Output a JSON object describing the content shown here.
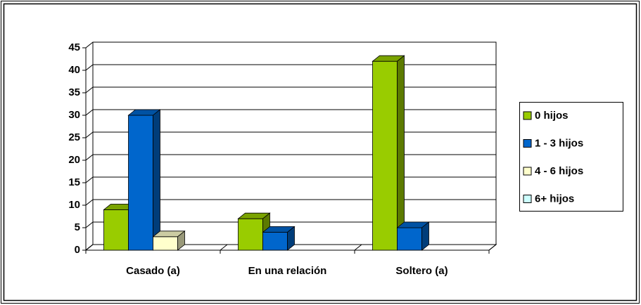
{
  "chart_data": {
    "type": "bar3d",
    "categories": [
      "Casado (a)",
      "En una relación",
      "Soltero (a)"
    ],
    "series": [
      {
        "name": "0 hijos",
        "color": "#99cc00",
        "values": [
          9,
          7,
          42
        ]
      },
      {
        "name": "1 - 3 hijos",
        "color": "#0066cc",
        "values": [
          30,
          4,
          5
        ]
      },
      {
        "name": "4 - 6 hijos",
        "color": "#ffffcc",
        "values": [
          3,
          0,
          0
        ]
      },
      {
        "name": "6+ hijos",
        "color": "#ccffff",
        "values": [
          0,
          0,
          0
        ]
      }
    ],
    "ylim": [
      0,
      45
    ],
    "yticks": [
      0,
      5,
      10,
      15,
      20,
      25,
      30,
      35,
      40,
      45
    ],
    "grid": true,
    "legend": "right"
  }
}
